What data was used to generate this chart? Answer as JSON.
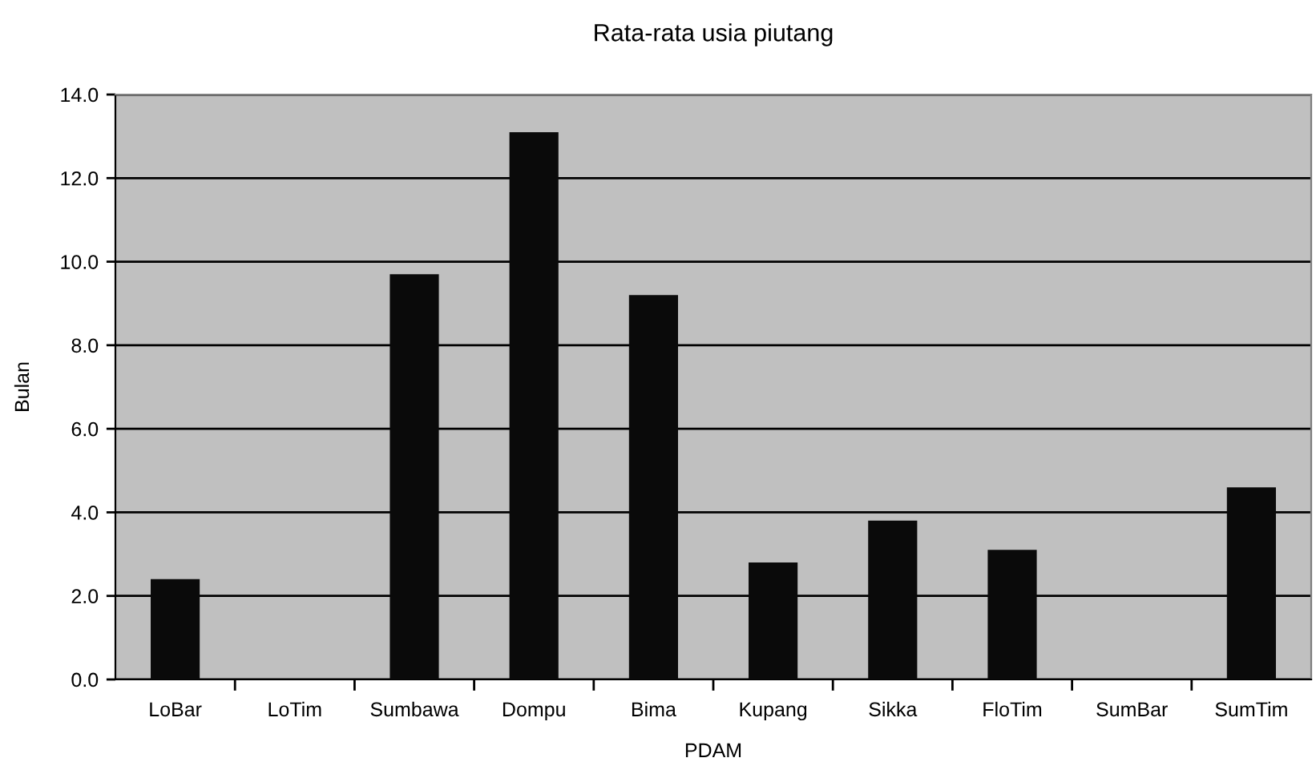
{
  "chart_data": {
    "type": "bar",
    "title": "Rata-rata usia piutang",
    "xlabel": "PDAM",
    "ylabel": "Bulan",
    "categories": [
      "LoBar",
      "LoTim",
      "Sumbawa",
      "Dompu",
      "Bima",
      "Kupang",
      "Sikka",
      "FloTim",
      "SumBar",
      "SumTim"
    ],
    "values": [
      2.4,
      null,
      9.7,
      13.1,
      9.2,
      2.8,
      3.8,
      3.1,
      null,
      4.6
    ],
    "color": "#0a0a0a",
    "ylim": [
      0,
      14
    ],
    "yticks": [
      {
        "value": 0,
        "label": "0.0"
      },
      {
        "value": 2,
        "label": "2.0"
      },
      {
        "value": 4,
        "label": "4.0"
      },
      {
        "value": 6,
        "label": "6.0"
      },
      {
        "value": 8,
        "label": "8.0"
      },
      {
        "value": 10,
        "label": "10.0"
      },
      {
        "value": 12,
        "label": "12.0"
      },
      {
        "value": 14,
        "label": "14.0"
      }
    ],
    "grid": "y",
    "legend": false
  }
}
